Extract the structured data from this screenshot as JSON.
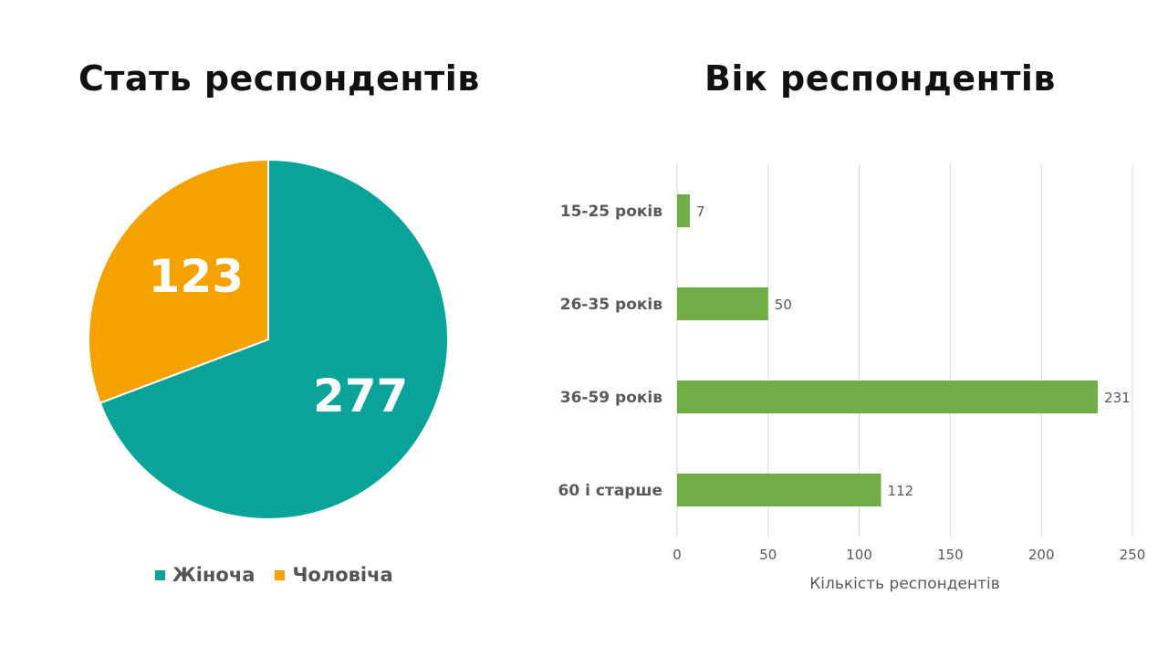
{
  "chart_data": [
    {
      "type": "pie",
      "title": "Стать респондентів",
      "categories": [
        "Жіноча",
        "Чоловіча"
      ],
      "values": [
        277,
        123
      ],
      "colors": [
        "#0aa399",
        "#f5a100"
      ],
      "legend": "bottom",
      "data_labels": [
        "277",
        "123"
      ]
    },
    {
      "type": "bar",
      "orientation": "horizontal",
      "title": "Вік респондентів",
      "categories": [
        "15-25 років",
        "26-35 років",
        "36-59 років",
        "60 і старше"
      ],
      "values": [
        7,
        50,
        231,
        112
      ],
      "data_labels": [
        "7",
        "50",
        "231",
        "112"
      ],
      "xlabel": "Кількість респондентів",
      "ylabel": "",
      "xlim": [
        0,
        250
      ],
      "xticks": [
        "0",
        "50",
        "100",
        "150",
        "200",
        "250"
      ],
      "grid": true,
      "color": "#70ad47"
    }
  ]
}
